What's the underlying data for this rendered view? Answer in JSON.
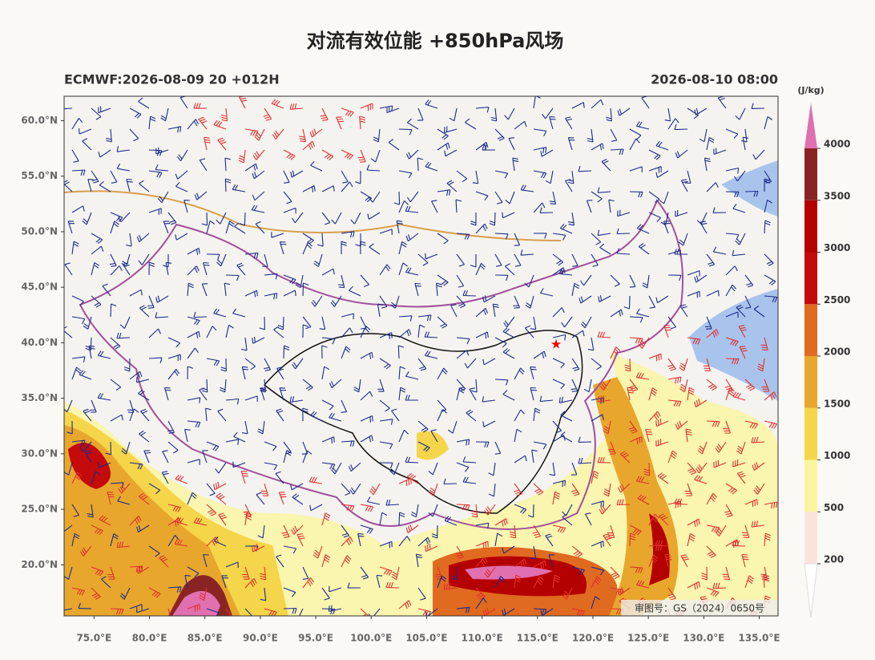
{
  "title": "对流有效位能 +850hPa风场",
  "model_run": "ECMWF:2026-08-09 20 +012H",
  "valid_time": "2026-08-10 08:00",
  "map": {
    "lonlim": [
      72.3,
      136.7
    ],
    "latlim": [
      15.4,
      62.2
    ],
    "lat_ticks": [
      {
        "value": 60,
        "label": "60.0°N"
      },
      {
        "value": 55,
        "label": "55.0°N"
      },
      {
        "value": 50,
        "label": "50.0°N"
      },
      {
        "value": 45,
        "label": "45.0°N"
      },
      {
        "value": 40,
        "label": "40.0°N"
      },
      {
        "value": 35,
        "label": "35.0°N"
      },
      {
        "value": 30,
        "label": "30.0°N"
      },
      {
        "value": 25,
        "label": "25.0°N"
      },
      {
        "value": 20,
        "label": "20.0°N"
      }
    ],
    "lon_ticks": [
      {
        "value": 75,
        "label": "75.0°E"
      },
      {
        "value": 80,
        "label": "80.0°E"
      },
      {
        "value": 85,
        "label": "85.0°E"
      },
      {
        "value": 90,
        "label": "90.0°E"
      },
      {
        "value": 95,
        "label": "95.0°E"
      },
      {
        "value": 100,
        "label": "100.0°E"
      },
      {
        "value": 105,
        "label": "105.0°E"
      },
      {
        "value": 110,
        "label": "110.0°E"
      },
      {
        "value": 115,
        "label": "115.0°E"
      },
      {
        "value": 120,
        "label": "120.0°E"
      },
      {
        "value": 125,
        "label": "125.0°E"
      },
      {
        "value": 130,
        "label": "130.0°E"
      },
      {
        "value": 135,
        "label": "135.0°E"
      }
    ],
    "approval": "审图号：GS（2024）0650号"
  },
  "colorbar": {
    "unit": "(J/kg)",
    "levels": [
      200,
      500,
      1000,
      1500,
      2000,
      2500,
      3000,
      3500,
      4000
    ],
    "colors": [
      "#fbe3dc",
      "#fbf59f",
      "#f5d54a",
      "#e8a72c",
      "#e06a1f",
      "#c40a0a",
      "#b50000",
      "#8a2424"
    ],
    "over_color": "#e070b0"
  }
}
